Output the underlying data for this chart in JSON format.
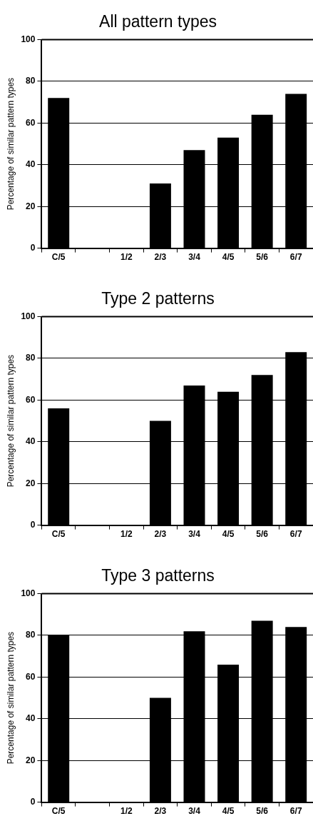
{
  "chart_data": [
    {
      "type": "bar",
      "title": "All pattern types",
      "ylabel": "Percentage of similar pattern types",
      "categories": [
        "C/5",
        null,
        "1/2",
        "2/3",
        "3/4",
        "4/5",
        "5/6",
        "6/7"
      ],
      "values": [
        72,
        null,
        0,
        31,
        47,
        53,
        64,
        74
      ],
      "color": "#000000",
      "ylim": [
        0,
        100
      ],
      "yticks": [
        0,
        20,
        40,
        60,
        80,
        100
      ],
      "grid": "y"
    },
    {
      "type": "bar",
      "title": "Type 2 patterns",
      "ylabel": "Percentage of similar pattern types",
      "categories": [
        "C/5",
        null,
        "1/2",
        "2/3",
        "3/4",
        "4/5",
        "5/6",
        "6/7"
      ],
      "values": [
        56,
        null,
        0,
        50,
        67,
        64,
        72,
        83
      ],
      "color": "#000000",
      "ylim": [
        0,
        100
      ],
      "yticks": [
        0,
        20,
        40,
        60,
        80,
        100
      ],
      "grid": "y"
    },
    {
      "type": "bar",
      "title": "Type 3 patterns",
      "ylabel": "Percentage of similar pattern types",
      "categories": [
        "C/5",
        null,
        "1/2",
        "2/3",
        "3/4",
        "4/5",
        "5/6",
        "6/7"
      ],
      "values": [
        80,
        null,
        0,
        50,
        82,
        66,
        87,
        84
      ],
      "color": "#000000",
      "ylim": [
        0,
        100
      ],
      "yticks": [
        0,
        20,
        40,
        60,
        80,
        100
      ],
      "grid": "y"
    }
  ]
}
